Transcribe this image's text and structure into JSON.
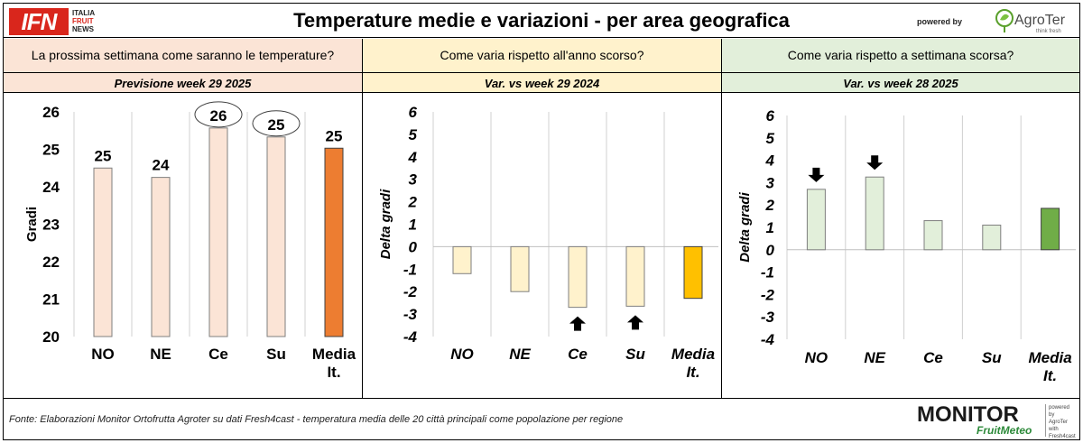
{
  "header": {
    "logo_letters": "IFN",
    "logo_lines": [
      "ITALIA",
      "FRUIT",
      "NEWS"
    ],
    "title": "Temperature medie e variazioni - per area geografica",
    "powered_by": "powered by",
    "agroter_name": "AgroTer",
    "agroter_tagline": "think fresh"
  },
  "panels": [
    {
      "question": "La prossima settimana come saranno le temperature?",
      "subtitle": "Previsione week 29 2025",
      "bg": "#fbe4d6"
    },
    {
      "question": "Come varia rispetto all'anno scorso?",
      "subtitle": "Var. vs week 29 2024",
      "bg": "#fff2cc"
    },
    {
      "question": "Come varia rispetto a settimana scorsa?",
      "subtitle": "Var. vs week 28 2025",
      "bg": "#e2efda"
    }
  ],
  "chart_data": [
    {
      "type": "bar",
      "categories": [
        "NO",
        "NE",
        "Ce",
        "Su",
        "Media It."
      ],
      "values": [
        24.5,
        24.25,
        25.57,
        25.33,
        25.03
      ],
      "data_labels": [
        "25",
        "24",
        "26",
        "25",
        "25"
      ],
      "circled_labels": [
        false,
        false,
        true,
        true,
        false
      ],
      "ylabel": "Gradi",
      "ylim": [
        20,
        26
      ],
      "yticks": [
        20,
        21,
        22,
        23,
        24,
        25,
        26
      ],
      "bar_colors": [
        "#fbe4d6",
        "#fbe4d6",
        "#fbe4d6",
        "#fbe4d6",
        "#ed7d31"
      ],
      "grid": "vertical separators"
    },
    {
      "type": "bar",
      "categories": [
        "NO",
        "NE",
        "Ce",
        "Su",
        "Media It."
      ],
      "values": [
        -1.2,
        -2.0,
        -2.7,
        -2.65,
        -2.3
      ],
      "arrows": [
        "",
        "",
        "up",
        "up",
        ""
      ],
      "ylabel": "Delta gradi",
      "ylim": [
        -4,
        6
      ],
      "yticks": [
        -4,
        -3,
        -2,
        -1,
        0,
        1,
        2,
        3,
        4,
        5,
        6
      ],
      "bar_colors": [
        "#fff2cc",
        "#fff2cc",
        "#fff2cc",
        "#fff2cc",
        "#ffc000"
      ],
      "grid": "vertical separators"
    },
    {
      "type": "bar",
      "categories": [
        "NO",
        "NE",
        "Ce",
        "Su",
        "Media It."
      ],
      "values": [
        2.7,
        3.25,
        1.3,
        1.1,
        1.85
      ],
      "arrows": [
        "down",
        "down",
        "",
        "",
        ""
      ],
      "ylabel": "Delta gradi",
      "ylim": [
        -4,
        6
      ],
      "yticks": [
        -4,
        -3,
        -2,
        -1,
        0,
        1,
        2,
        3,
        4,
        5,
        6
      ],
      "bar_colors": [
        "#e2efda",
        "#e2efda",
        "#e2efda",
        "#e2efda",
        "#70ad47"
      ],
      "grid": "vertical separators"
    }
  ],
  "footer": {
    "source": "Fonte: Elaborazioni Monitor Ortofrutta Agroter su dati Fresh4cast - temperatura media delle 20 città principali come popolazione per regione",
    "monitor_word": "MONITOR",
    "fruitmeteo": "FruitMeteo",
    "side_lines": [
      "powered by",
      "AgroTer",
      "with",
      "Fresh4cast"
    ]
  }
}
